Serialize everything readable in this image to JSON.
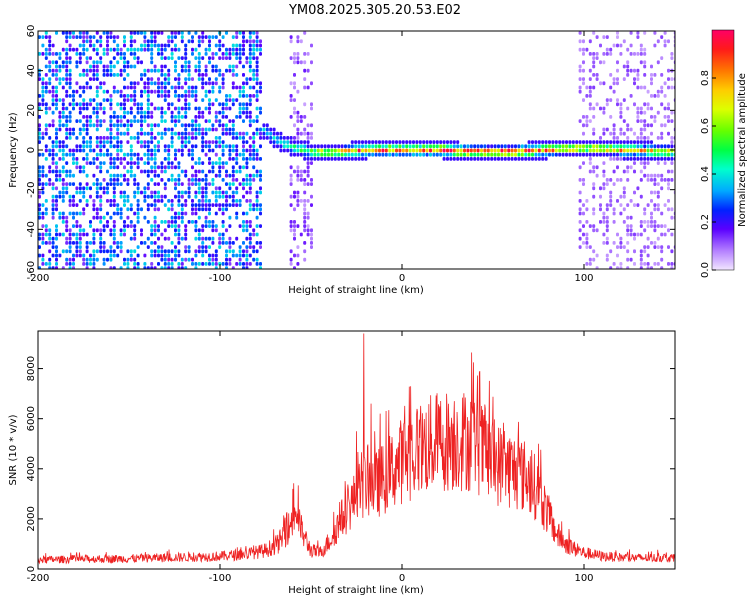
{
  "title": "YM08.2025.305.20.53.E02",
  "chart_data": [
    {
      "type": "heatmap",
      "xlabel": "Height of straight line (km)",
      "ylabel": "Frequency (Hz)",
      "xlim": [
        -200,
        150
      ],
      "ylim": [
        -60,
        60
      ],
      "x_ticks": [
        -200,
        -100,
        0,
        100
      ],
      "y_ticks": [
        -60,
        -40,
        -20,
        0,
        20,
        40,
        60
      ],
      "colorbar": {
        "label": "Normalized spectral amplitude",
        "range": [
          0,
          1
        ],
        "ticks": [
          0.0,
          0.2,
          0.4,
          0.6,
          0.8
        ]
      },
      "noise_regions": [
        {
          "x": [
            -200,
            -78
          ],
          "level": 0.3
        },
        {
          "x": [
            -62,
            -50
          ],
          "level": 0.12
        },
        {
          "x": [
            97,
            150
          ],
          "level": 0.1
        }
      ],
      "ridge": [
        {
          "x": -78,
          "freq": 12,
          "amp": 0.35
        },
        {
          "x": -70,
          "freq": 6,
          "amp": 0.45
        },
        {
          "x": -60,
          "freq": 2,
          "amp": 0.55
        },
        {
          "x": -50,
          "freq": 0,
          "amp": 0.6
        },
        {
          "x": -35,
          "freq": 0,
          "amp": 0.75
        },
        {
          "x": -20,
          "freq": 1,
          "amp": 0.9
        },
        {
          "x": 0,
          "freq": 1,
          "amp": 0.85
        },
        {
          "x": 20,
          "freq": 1,
          "amp": 0.95
        },
        {
          "x": 40,
          "freq": 0,
          "amp": 0.9
        },
        {
          "x": 60,
          "freq": 0,
          "amp": 0.95
        },
        {
          "x": 80,
          "freq": 1,
          "amp": 0.85
        },
        {
          "x": 100,
          "freq": 2,
          "amp": 0.7
        },
        {
          "x": 120,
          "freq": 1,
          "amp": 0.8
        },
        {
          "x": 150,
          "freq": 0,
          "amp": 0.7
        }
      ]
    },
    {
      "type": "line",
      "xlabel": "Height of straight line (km)",
      "ylabel": "SNR (10 * v/v)",
      "xlim": [
        -200,
        150
      ],
      "ylim": [
        0,
        9500
      ],
      "x_ticks": [
        -200,
        -100,
        0,
        100
      ],
      "y_ticks": [
        0,
        2000,
        4000,
        6000,
        8000
      ],
      "color": "#ee2222",
      "envelope": {
        "x": [
          -200,
          -150,
          -100,
          -85,
          -75,
          -68,
          -62,
          -58,
          -55,
          -50,
          -45,
          -40,
          -35,
          -30,
          -25,
          -20,
          -15,
          -10,
          -5,
          0,
          10,
          20,
          30,
          40,
          45,
          50,
          60,
          70,
          75,
          80,
          85,
          90,
          95,
          100,
          110,
          120,
          130,
          140,
          150
        ],
        "y": [
          400,
          450,
          550,
          650,
          800,
          1100,
          1800,
          2500,
          1600,
          800,
          700,
          1200,
          1900,
          2600,
          3100,
          3800,
          3600,
          3900,
          4300,
          4700,
          5200,
          5500,
          5600,
          5500,
          5000,
          4600,
          4300,
          3900,
          3300,
          2400,
          1500,
          1100,
          850,
          700,
          550,
          500,
          480,
          480,
          480
        ]
      },
      "peaks": [
        {
          "x": -21,
          "y": 9400
        },
        {
          "x": -17,
          "y": 6600
        },
        {
          "x": -25,
          "y": 5500
        },
        {
          "x": -15,
          "y": 5500
        },
        {
          "x": -12,
          "y": 6200
        },
        {
          "x": -60,
          "y": 3200
        },
        {
          "x": 10,
          "y": 6000
        },
        {
          "x": 28,
          "y": 5800
        },
        {
          "x": 75,
          "y": 5000
        }
      ]
    }
  ]
}
